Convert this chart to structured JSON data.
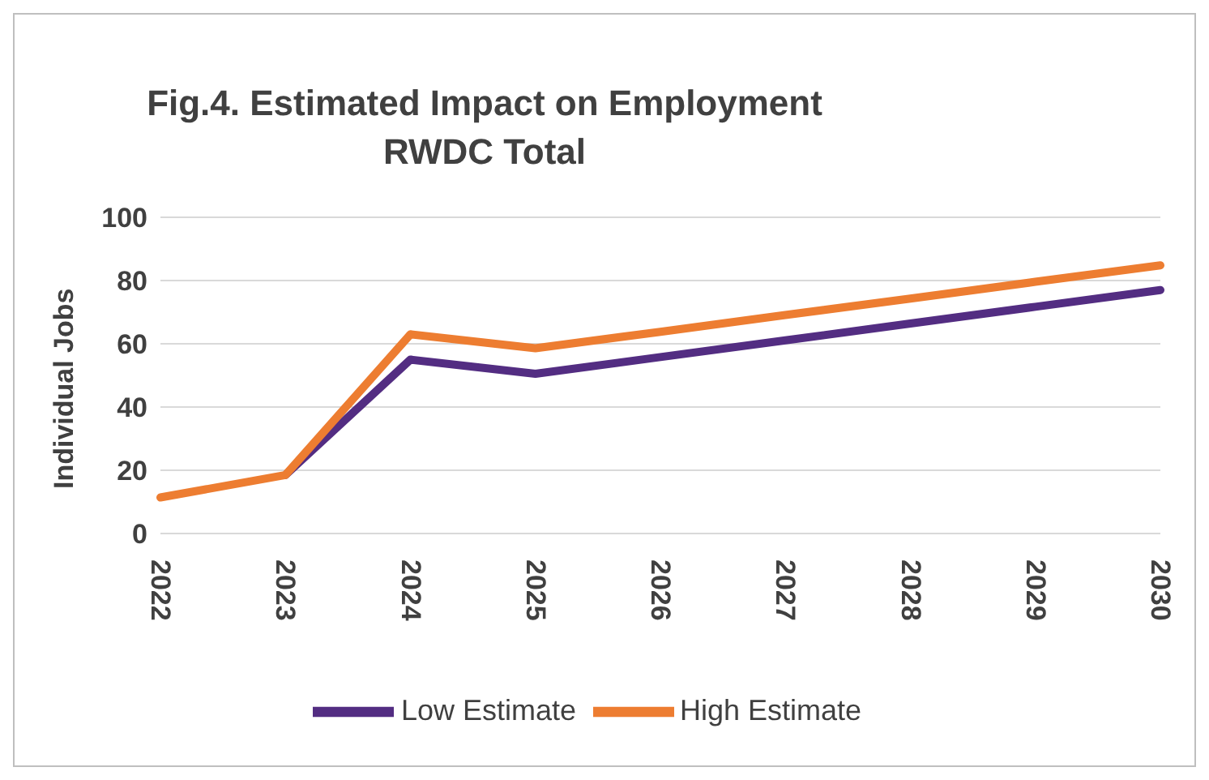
{
  "chart_data": {
    "type": "line",
    "title": "Fig.4. Estimated Impact on Employment\nRWDC Total",
    "ylabel": "Individual Jobs",
    "categories": [
      "2022",
      "2023",
      "2024",
      "2025",
      "2026",
      "2027",
      "2028",
      "2029",
      "2030"
    ],
    "series": [
      {
        "name": "Low Estimate",
        "color": "#532d82",
        "values": [
          null,
          18.5,
          55,
          50.5,
          55.8,
          61.1,
          66.4,
          71.7,
          77
        ]
      },
      {
        "name": "High Estimate",
        "color": "#ed7d31",
        "values": [
          11.4,
          18.5,
          63,
          58.6,
          63.8,
          69.1,
          74.3,
          79.6,
          84.8
        ]
      }
    ],
    "ylim": [
      0,
      100
    ],
    "yticks": [
      0,
      20,
      40,
      60,
      80,
      100
    ],
    "grid": "y",
    "legend": "bottom",
    "marker": "none",
    "line_style": "solid"
  }
}
